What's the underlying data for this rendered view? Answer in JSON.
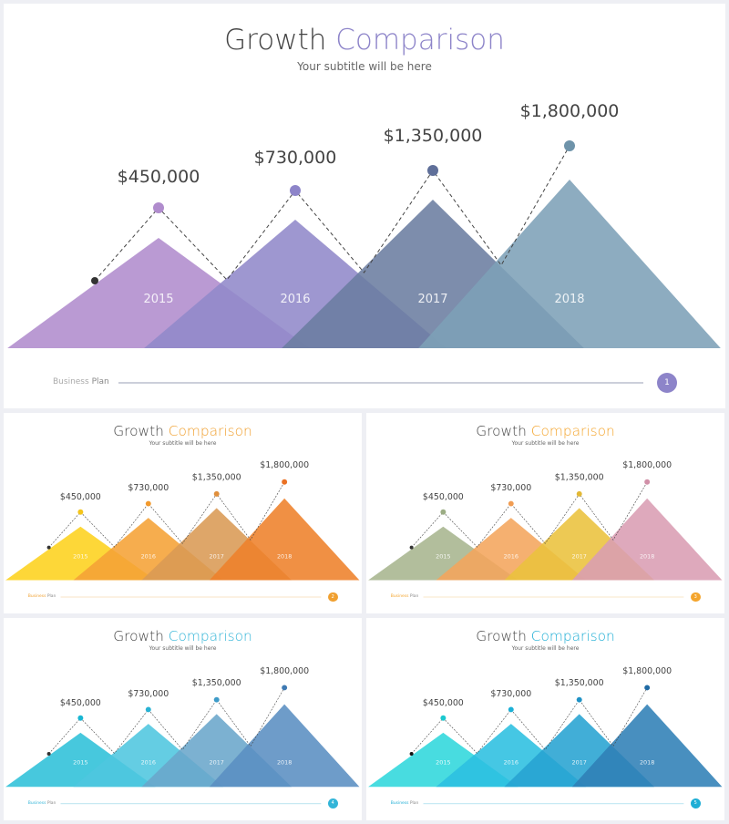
{
  "slides": [
    {
      "title_main": "Growth",
      "title_accent": "Comparison",
      "subtitle": "Your subtitle will be here",
      "footer_light": "Business",
      "footer_bold": "Plan",
      "page_number": "1",
      "colors": {
        "accent": "#8d84c9",
        "triangles": [
          "#b08ccd",
          "#9189c9",
          "#6b7da1",
          "#7da0b7"
        ],
        "dots": [
          "#b08ccd",
          "#8d84c9",
          "#5f6f99",
          "#6e93aa"
        ],
        "start_dot": "#333333",
        "page_dot": "#8d84c9",
        "footer_line": "#9a9fb5"
      }
    },
    {
      "title_main": "Growth",
      "title_accent": "Comparison",
      "subtitle": "Your subtitle will be here",
      "footer_light": "Business",
      "footer_bold": "Plan",
      "page_number": "2",
      "colors": {
        "accent": "#f0a030",
        "triangles": [
          "#fdd21d",
          "#f5a236",
          "#d99a54",
          "#ee812a"
        ],
        "dots": [
          "#f4c51b",
          "#f29a2e",
          "#e08f3c",
          "#ea7124"
        ],
        "start_dot": "#333333",
        "page_dot": "#f0a030",
        "footer_line": "#f2c88a"
      }
    },
    {
      "title_main": "Growth",
      "title_accent": "Comparison",
      "subtitle": "Your subtitle will be here",
      "footer_light": "Business",
      "footer_bold": "Plan",
      "page_number": "3",
      "colors": {
        "accent": "#f4a52d",
        "triangles": [
          "#a7b58e",
          "#f4a55c",
          "#eac13c",
          "#d99db3"
        ],
        "dots": [
          "#9cad85",
          "#f19d53",
          "#e3b835",
          "#d190a8"
        ],
        "start_dot": "#333333",
        "page_dot": "#f4a52d",
        "footer_line": "#f5cf93"
      }
    },
    {
      "title_main": "Growth",
      "title_accent": "Comparison",
      "subtitle": "Your subtitle will be here",
      "footer_light": "Business",
      "footer_bold": "Plan",
      "page_number": "4",
      "colors": {
        "accent": "#33b5d8",
        "triangles": [
          "#2ec0d8",
          "#4ec6df",
          "#6aa6cb",
          "#5a8ec2"
        ],
        "dots": [
          "#19b6d2",
          "#28b2d3",
          "#3e9bc8",
          "#3f7ab3"
        ],
        "start_dot": "#333333",
        "page_dot": "#33b5d8",
        "footer_line": "#8fd3e6"
      }
    },
    {
      "title_main": "Growth",
      "title_accent": "Comparison",
      "subtitle": "Your subtitle will be here",
      "footer_light": "Business",
      "footer_bold": "Plan",
      "page_number": "5",
      "colors": {
        "accent": "#1faed5",
        "triangles": [
          "#2fd7dc",
          "#2bbfe0",
          "#27a3d1",
          "#2f7fb6"
        ],
        "dots": [
          "#1bc8cf",
          "#1cb0d6",
          "#1f92c5",
          "#1f6aa4"
        ],
        "start_dot": "#111111",
        "page_dot": "#1faed5",
        "footer_line": "#8fd6ea"
      }
    }
  ],
  "chart_data": {
    "type": "area",
    "categories": [
      "2015",
      "2016",
      "2017",
      "2018"
    ],
    "values": [
      450000,
      730000,
      1350000,
      1800000
    ],
    "value_labels": [
      "$450,000",
      "$730,000",
      "$1,350,000",
      "$1,800,000"
    ],
    "title": "Growth Comparison",
    "subtitle": "Your subtitle will be here"
  }
}
